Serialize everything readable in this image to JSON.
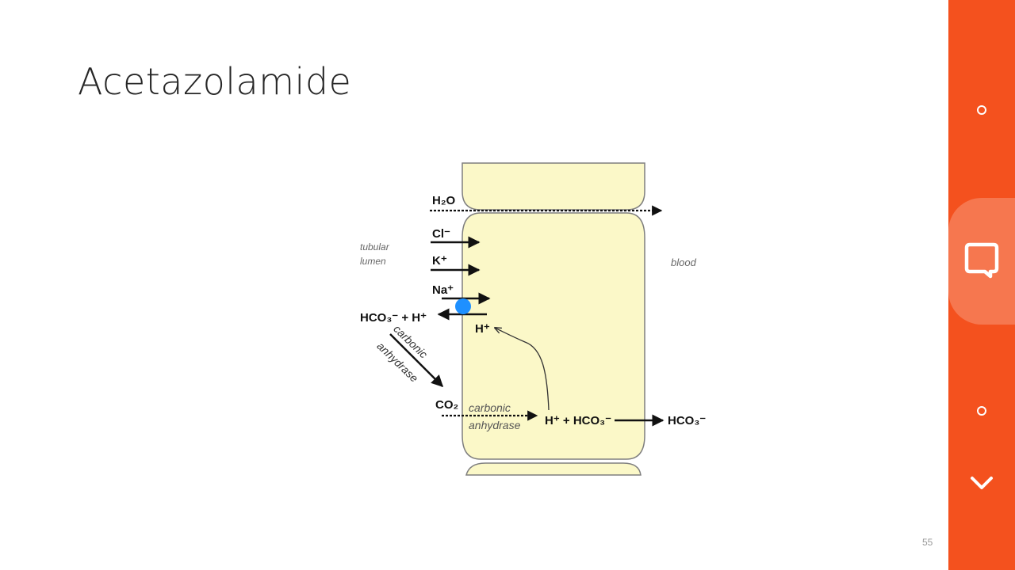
{
  "slide": {
    "title": "Acetazolamide",
    "slide_number": "55"
  },
  "diagram": {
    "labels": {
      "tubular": "tubular",
      "lumen": "lumen",
      "blood": "blood",
      "h2o": "H₂O",
      "cl": "Cl⁻",
      "k": "K⁺",
      "na": "Na⁺",
      "hco3_h": "HCO₃⁻ + H⁺",
      "h_inside": "H⁺",
      "carbonic_lumen": "carbonic",
      "anhydrase_lumen": "anhydrase",
      "co2": "CO₂",
      "carbonic_cell": "carbonic",
      "anhydrase_cell": "anhydrase",
      "h_hco3": "H⁺ + HCO₃⁻",
      "hco3_blood": "HCO₃⁻"
    },
    "colors": {
      "cell_fill": "#fbf8c8",
      "cell_stroke": "#7f7f7f",
      "arrow": "#111111",
      "transporter": "#1e90ff"
    }
  },
  "side_nav": {
    "background": "#f4511e",
    "buttons": [
      "dot-icon",
      "chat-icon",
      "dot-icon",
      "chevron-down-icon"
    ]
  }
}
